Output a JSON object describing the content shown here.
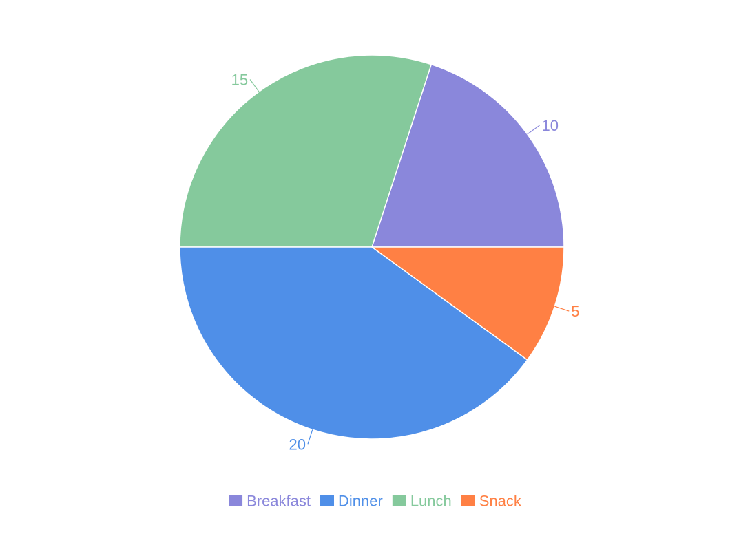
{
  "chart_data": {
    "type": "pie",
    "title": "",
    "categories": [
      "Breakfast",
      "Lunch",
      "Dinner",
      "Snack"
    ],
    "values": [
      10,
      15,
      20,
      5
    ],
    "colors": {
      "Breakfast": "#8a87db",
      "Dinner": "#4f8fe8",
      "Lunch": "#85c99c",
      "Snack": "#ff8044"
    },
    "data_labels": true,
    "legend": {
      "position": "bottom",
      "items": [
        "Breakfast",
        "Dinner",
        "Lunch",
        "Snack"
      ]
    }
  }
}
